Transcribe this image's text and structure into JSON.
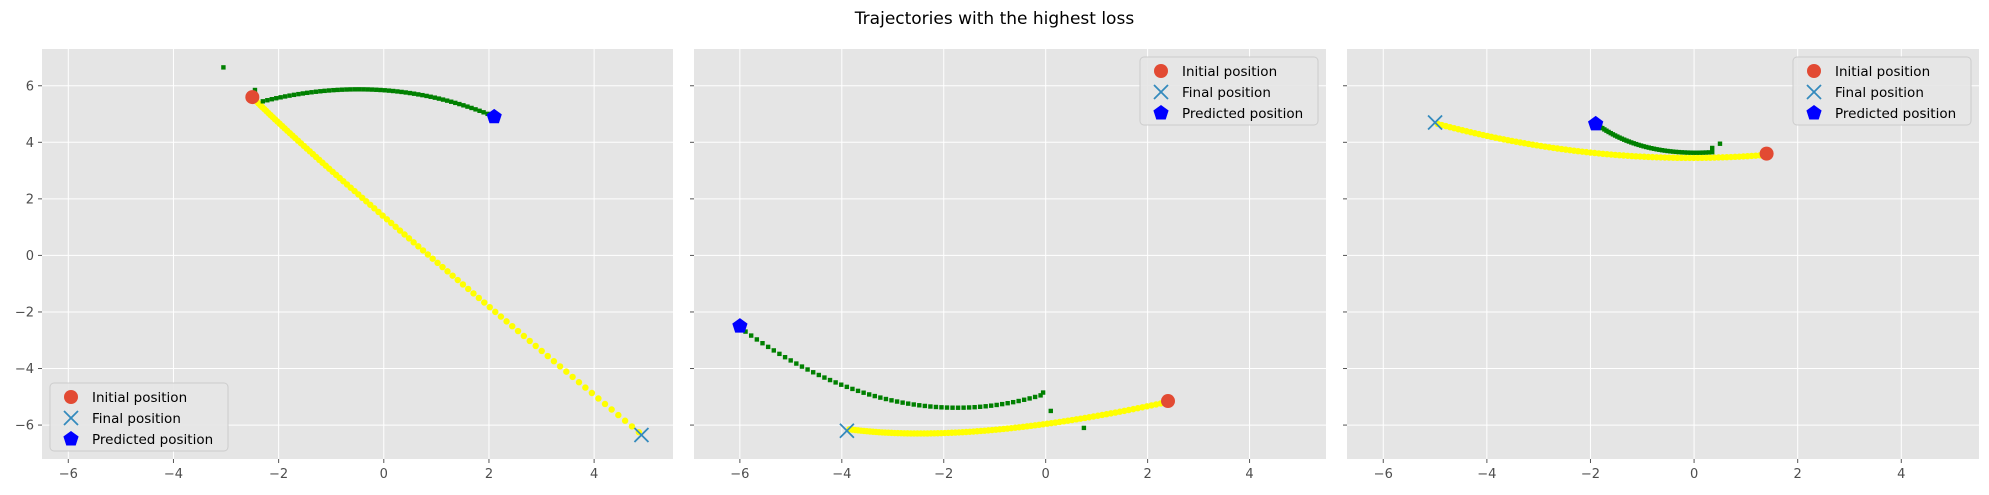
{
  "title": "Trajectories with the highest loss",
  "colors": {
    "plot_bg": "#e5e5e5",
    "grid": "#ffffff",
    "initial": "#e24a33",
    "final": "#348abd",
    "predicted": "#0000ff",
    "true_path": "#ffff00",
    "pred_path": "#008000"
  },
  "legend_labels": [
    "Initial position",
    "Final position",
    "Predicted position"
  ],
  "chart_data": [
    {
      "type": "scatter",
      "xlim": [
        -6.5,
        5.5
      ],
      "ylim": [
        -7.2,
        7.3
      ],
      "xticks": [
        -6,
        -4,
        -2,
        0,
        2,
        4
      ],
      "yticks": [
        -6,
        -4,
        -2,
        0,
        2,
        4,
        6
      ],
      "legend_loc": "lower-left",
      "initial": [
        -2.5,
        5.6
      ],
      "final": [
        4.9,
        -6.35
      ],
      "predicted": [
        2.1,
        4.9
      ],
      "true_path": {
        "start": [
          -2.45,
          5.5
        ],
        "ctrl": [
          -1.0,
          2.8
        ],
        "end": [
          4.85,
          -6.25
        ],
        "n": 90
      },
      "pred_path": {
        "start": [
          -2.3,
          5.45
        ],
        "ctrl": [
          0.0,
          6.5
        ],
        "end": [
          2.05,
          4.95
        ],
        "n": 55
      },
      "stray_points": [
        [
          -3.05,
          6.65
        ],
        [
          -2.45,
          5.85
        ]
      ]
    },
    {
      "type": "scatter",
      "xlim": [
        -6.9,
        5.5
      ],
      "ylim": [
        -7.2,
        7.3
      ],
      "xticks": [
        -6,
        -4,
        -2,
        0,
        2,
        4
      ],
      "yticks": [
        -6,
        -4,
        -2,
        0,
        2,
        4,
        6
      ],
      "legend_loc": "top-right",
      "initial": [
        2.4,
        -5.15
      ],
      "final": [
        -3.9,
        -6.2
      ],
      "predicted": [
        -6.0,
        -2.5
      ],
      "true_path": {
        "start": [
          2.35,
          -5.2
        ],
        "ctrl": [
          -1.5,
          -6.7
        ],
        "end": [
          -3.85,
          -6.15
        ],
        "n": 85
      },
      "pred_path": {
        "start": [
          -6.0,
          -2.55
        ],
        "ctrl": [
          -3.0,
          -6.5
        ],
        "end": [
          -0.1,
          -4.95
        ],
        "n": 55
      },
      "stray_points": [
        [
          0.75,
          -6.1
        ],
        [
          0.1,
          -5.5
        ],
        [
          -0.05,
          -4.85
        ]
      ]
    },
    {
      "type": "scatter",
      "xlim": [
        -6.7,
        5.5
      ],
      "ylim": [
        -7.2,
        7.3
      ],
      "xticks": [
        -6,
        -4,
        -2,
        0,
        2,
        4
      ],
      "yticks": [
        -6,
        -4,
        -2,
        0,
        2,
        4,
        6
      ],
      "legend_loc": "top-right",
      "initial": [
        1.4,
        3.6
      ],
      "final": [
        -5.0,
        4.7
      ],
      "predicted": [
        -1.9,
        4.65
      ],
      "true_path": {
        "start": [
          1.35,
          3.55
        ],
        "ctrl": [
          -1.8,
          3.1
        ],
        "end": [
          -4.95,
          4.65
        ],
        "n": 80
      },
      "pred_path": {
        "start": [
          -1.85,
          4.6
        ],
        "ctrl": [
          -1.0,
          3.5
        ],
        "end": [
          0.35,
          3.65
        ],
        "n": 45
      },
      "stray_points": [
        [
          0.5,
          3.95
        ],
        [
          0.35,
          3.8
        ]
      ]
    }
  ]
}
